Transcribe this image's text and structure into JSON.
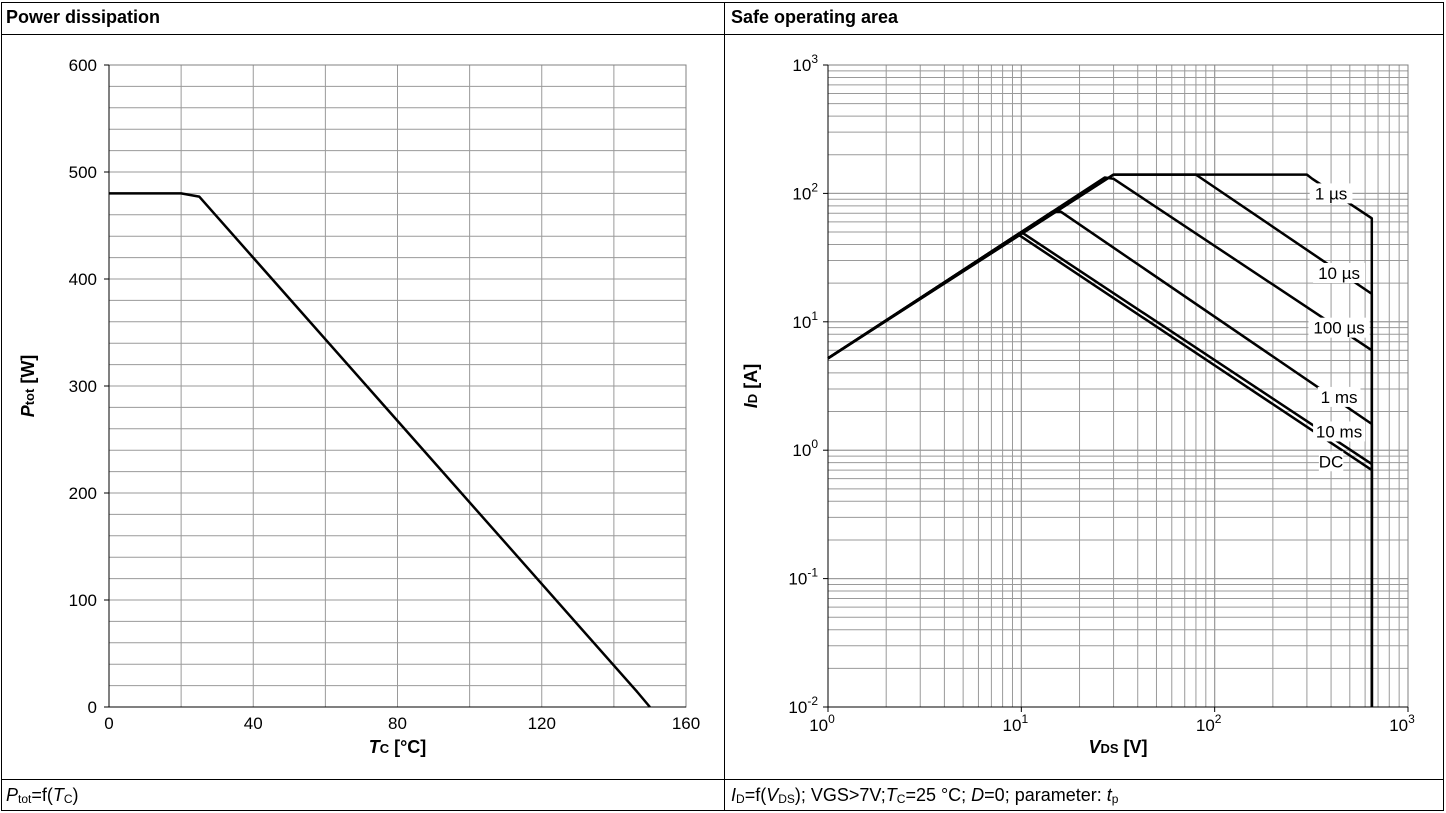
{
  "panels": {
    "left": {
      "header": "Power dissipation",
      "caption": {
        "p": "P",
        "tot": "tot",
        "eq": "=f(",
        "t": "T",
        "c": "C",
        "close": ")"
      }
    },
    "right": {
      "header": "Safe operating area",
      "caption": {
        "i": "I",
        "d": "D",
        "eq": "=f(",
        "v": "V",
        "ds": "DS",
        "mid": "); VGS>7V;",
        "t": "T",
        "c": "C",
        "temp": "=25 °C; ",
        "dd": "D",
        "dval": "=0; parameter: ",
        "tp": "t",
        "p": "p"
      }
    }
  },
  "chart_data": [
    {
      "type": "line",
      "title": "Power dissipation",
      "xlabel": {
        "sym": "T",
        "sub": "C",
        "unit": " [°C]"
      },
      "ylabel": {
        "sym": "P",
        "sub": "tot",
        "unit": " [W]"
      },
      "xlim": [
        0,
        160
      ],
      "ylim": [
        0,
        600
      ],
      "x_ticks": [
        "0",
        "40",
        "80",
        "120",
        "160"
      ],
      "y_ticks": [
        "0",
        "100",
        "200",
        "300",
        "400",
        "500",
        "600"
      ],
      "grid": true,
      "series": [
        {
          "x": [
            0,
            20,
            25,
            146.5,
            150
          ],
          "y": [
            480,
            480,
            477,
            14,
            0
          ]
        }
      ]
    },
    {
      "type": "line",
      "title": "Safe operating area",
      "xscale": "log",
      "yscale": "log",
      "xlabel": {
        "sym": "V",
        "sub": "DS",
        "unit": " [V]"
      },
      "ylabel": {
        "sym": "I",
        "sub": "D",
        "unit": " [A]"
      },
      "xlim": [
        1,
        1000
      ],
      "ylim": [
        0.01,
        1000
      ],
      "x_ticks": [
        {
          "base": "10",
          "exp": "0"
        },
        {
          "base": "10",
          "exp": "1"
        },
        {
          "base": "10",
          "exp": "2"
        },
        {
          "base": "10",
          "exp": "3"
        }
      ],
      "y_ticks": [
        {
          "base": "10",
          "exp": "-2"
        },
        {
          "base": "10",
          "exp": "-1"
        },
        {
          "base": "10",
          "exp": "0"
        },
        {
          "base": "10",
          "exp": "1"
        },
        {
          "base": "10",
          "exp": "2"
        },
        {
          "base": "10",
          "exp": "3"
        }
      ],
      "grid": true,
      "series": [
        {
          "name": "1 µs",
          "x": [
            1,
            30,
            300,
            320,
            650,
            650
          ],
          "y": [
            5.2,
            140,
            140,
            130,
            64,
            0.01
          ]
        },
        {
          "name": "10 µs",
          "x": [
            1,
            30,
            80,
            650,
            650
          ],
          "y": [
            5.2,
            140,
            140,
            16.5,
            0.01
          ]
        },
        {
          "name": "100 µs",
          "x": [
            1,
            27,
            30,
            650,
            650
          ],
          "y": [
            5.2,
            133,
            130,
            6,
            0.01
          ]
        },
        {
          "name": "1 ms",
          "x": [
            1,
            14.5,
            16,
            650,
            650
          ],
          "y": [
            5.2,
            72,
            72,
            1.6,
            0.01
          ]
        },
        {
          "name": "10 ms",
          "x": [
            1,
            10,
            650,
            650
          ],
          "y": [
            5.2,
            50,
            0.78,
            0.01
          ]
        },
        {
          "name": "DC",
          "x": [
            1,
            9.6,
            650,
            650
          ],
          "y": [
            5.2,
            48,
            0.7,
            0.01
          ]
        }
      ]
    }
  ]
}
